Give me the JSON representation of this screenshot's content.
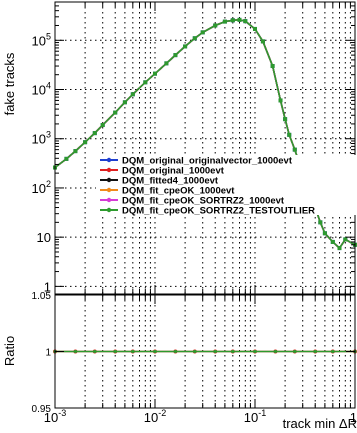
{
  "chart_data": [
    {
      "type": "line",
      "panel": "main",
      "ylabel": "fake tracks",
      "xscale": "log",
      "yscale": "log",
      "xlim": [
        0.001,
        1
      ],
      "ylim": [
        0.7,
        600000
      ],
      "grid": true,
      "legend_placement": "center-right",
      "y_tick_labels": [
        "1",
        "10",
        "10^2",
        "10^3",
        "10^4",
        "10^5"
      ],
      "series": [
        {
          "name": "DQM_original_originalvector_1000evt",
          "color": "#1f3fcf",
          "x": [
            0.001,
            0.0013,
            0.0016,
            0.002,
            0.0025,
            0.003,
            0.004,
            0.005,
            0.006,
            0.008,
            0.01,
            0.013,
            0.016,
            0.02,
            0.025,
            0.03,
            0.04,
            0.05,
            0.06,
            0.07,
            0.08,
            0.1,
            0.12,
            0.15,
            0.18,
            0.2,
            0.22,
            0.25,
            0.28,
            0.3,
            0.35,
            0.4,
            0.45,
            0.5,
            0.6,
            0.7,
            0.8,
            1.0
          ],
          "y": [
            260,
            390,
            560,
            850,
            1300,
            1900,
            3400,
            5500,
            8000,
            14000,
            21000,
            34000,
            50000,
            75000,
            110000,
            145000,
            200000,
            240000,
            255000,
            260000,
            245000,
            170000,
            95000,
            30000,
            6000,
            2500,
            1200,
            600,
            300,
            200,
            80,
            40,
            20,
            12,
            8,
            6,
            9,
            7
          ]
        },
        {
          "name": "DQM_original_1000evt",
          "color": "#e02020",
          "x": [
            0.001,
            0.0013,
            0.0016,
            0.002,
            0.0025,
            0.003,
            0.004,
            0.005,
            0.006,
            0.008,
            0.01,
            0.013,
            0.016,
            0.02,
            0.025,
            0.03,
            0.04,
            0.05,
            0.06,
            0.07,
            0.08,
            0.1,
            0.12,
            0.15,
            0.18,
            0.2,
            0.22,
            0.25,
            0.28,
            0.3,
            0.35,
            0.4,
            0.45,
            0.5,
            0.6,
            0.7,
            0.8,
            1.0
          ],
          "y": [
            260,
            390,
            560,
            850,
            1300,
            1900,
            3400,
            5500,
            8000,
            14000,
            21000,
            34000,
            50000,
            75000,
            110000,
            145000,
            200000,
            240000,
            255000,
            260000,
            245000,
            170000,
            95000,
            30000,
            6000,
            2500,
            1200,
            600,
            300,
            200,
            80,
            40,
            20,
            12,
            8,
            6,
            9,
            7
          ]
        },
        {
          "name": "DQM_fitted4_1000evt",
          "color": "#111111",
          "x": [
            0.001,
            0.0013,
            0.0016,
            0.002,
            0.0025,
            0.003,
            0.004,
            0.005,
            0.006,
            0.008,
            0.01,
            0.013,
            0.016,
            0.02,
            0.025,
            0.03,
            0.04,
            0.05,
            0.06,
            0.07,
            0.08,
            0.1,
            0.12,
            0.15,
            0.18,
            0.2,
            0.22,
            0.25,
            0.28,
            0.3,
            0.35,
            0.4,
            0.45,
            0.5,
            0.6,
            0.7,
            0.8,
            1.0
          ],
          "y": [
            260,
            390,
            560,
            850,
            1300,
            1900,
            3400,
            5500,
            8000,
            14000,
            21000,
            34000,
            50000,
            75000,
            110000,
            145000,
            200000,
            240000,
            255000,
            260000,
            245000,
            170000,
            95000,
            30000,
            6000,
            2500,
            1200,
            600,
            300,
            200,
            80,
            40,
            20,
            12,
            8,
            6,
            9,
            7
          ]
        },
        {
          "name": "DQM_fit_cpeOK_1000evt",
          "color": "#f08a1c",
          "x": [
            0.001,
            0.0013,
            0.0016,
            0.002,
            0.0025,
            0.003,
            0.004,
            0.005,
            0.006,
            0.008,
            0.01,
            0.013,
            0.016,
            0.02,
            0.025,
            0.03,
            0.04,
            0.05,
            0.06,
            0.07,
            0.08,
            0.1,
            0.12,
            0.15,
            0.18,
            0.2,
            0.22,
            0.25,
            0.28,
            0.3,
            0.35,
            0.4,
            0.45,
            0.5,
            0.6,
            0.7,
            0.8,
            1.0
          ],
          "y": [
            260,
            390,
            560,
            850,
            1300,
            1900,
            3400,
            5500,
            8000,
            14000,
            21000,
            34000,
            50000,
            75000,
            110000,
            145000,
            200000,
            240000,
            255000,
            260000,
            245000,
            170000,
            95000,
            30000,
            6000,
            2500,
            1200,
            600,
            300,
            200,
            80,
            40,
            20,
            12,
            8,
            6,
            9,
            7
          ]
        },
        {
          "name": "DQM_fit_cpeOK_SORTRZ2_1000evt",
          "color": "#d63bd6",
          "x": [
            0.001,
            0.0013,
            0.0016,
            0.002,
            0.0025,
            0.003,
            0.004,
            0.005,
            0.006,
            0.008,
            0.01,
            0.013,
            0.016,
            0.02,
            0.025,
            0.03,
            0.04,
            0.05,
            0.06,
            0.07,
            0.08,
            0.1,
            0.12,
            0.15,
            0.18,
            0.2,
            0.22,
            0.25,
            0.28,
            0.3,
            0.35,
            0.4,
            0.45,
            0.5,
            0.6,
            0.7,
            0.8,
            1.0
          ],
          "y": [
            260,
            390,
            560,
            850,
            1300,
            1900,
            3400,
            5500,
            8000,
            14000,
            21000,
            34000,
            50000,
            75000,
            110000,
            145000,
            200000,
            240000,
            255000,
            260000,
            245000,
            170000,
            95000,
            30000,
            6000,
            2500,
            1200,
            600,
            300,
            200,
            80,
            40,
            20,
            12,
            8,
            6,
            9,
            7
          ]
        },
        {
          "name": "DQM_fit_cpeOK_SORTRZ2_TESTOUTLIER",
          "color": "#2e9a2e",
          "x": [
            0.001,
            0.0013,
            0.0016,
            0.002,
            0.0025,
            0.003,
            0.004,
            0.005,
            0.006,
            0.008,
            0.01,
            0.013,
            0.016,
            0.02,
            0.025,
            0.03,
            0.04,
            0.05,
            0.06,
            0.07,
            0.08,
            0.1,
            0.12,
            0.15,
            0.18,
            0.2,
            0.22,
            0.25,
            0.28,
            0.3,
            0.35,
            0.4,
            0.45,
            0.5,
            0.6,
            0.7,
            0.8,
            1.0
          ],
          "y": [
            260,
            390,
            560,
            850,
            1300,
            1900,
            3400,
            5500,
            8000,
            14000,
            21000,
            34000,
            50000,
            75000,
            110000,
            145000,
            200000,
            240000,
            255000,
            260000,
            245000,
            170000,
            95000,
            30000,
            6000,
            2500,
            1200,
            600,
            300,
            200,
            80,
            40,
            20,
            12,
            8,
            6,
            9,
            7
          ]
        }
      ]
    },
    {
      "type": "scatter",
      "panel": "ratio",
      "xlabel": "track min  ΔR",
      "ylabel": "Ratio",
      "xscale": "log",
      "xlim": [
        0.001,
        1
      ],
      "ylim": [
        0.95,
        1.05
      ],
      "grid": true,
      "x_tick_labels": [
        "10^-3",
        "10^-2",
        "10^-1",
        "1"
      ],
      "y_tick_labels": [
        "0.95",
        "1",
        "1.05"
      ],
      "series": [
        {
          "name": "DQM_original_1000evt",
          "color": "#e02020",
          "x": [
            0.001,
            0.0016,
            0.0025,
            0.004,
            0.006,
            0.01,
            0.016,
            0.025,
            0.04,
            0.06,
            0.1,
            0.16,
            0.25,
            0.4,
            0.6,
            1.0
          ],
          "y": [
            1,
            1,
            1,
            1,
            1,
            1,
            1,
            1,
            1,
            1,
            1,
            1,
            1,
            1,
            1,
            1
          ]
        },
        {
          "name": "DQM_fit_cpeOK_SORTRZ2_TESTOUTLIER",
          "color": "#2e9a2e",
          "x": [
            0.001,
            0.0016,
            0.0025,
            0.004,
            0.006,
            0.01,
            0.016,
            0.025,
            0.04,
            0.06,
            0.1,
            0.16,
            0.25,
            0.4,
            0.6,
            1.0
          ],
          "y": [
            1,
            1,
            1,
            1,
            1,
            1,
            1,
            1,
            1,
            1,
            1,
            1,
            1,
            1,
            1,
            1
          ]
        }
      ]
    }
  ]
}
